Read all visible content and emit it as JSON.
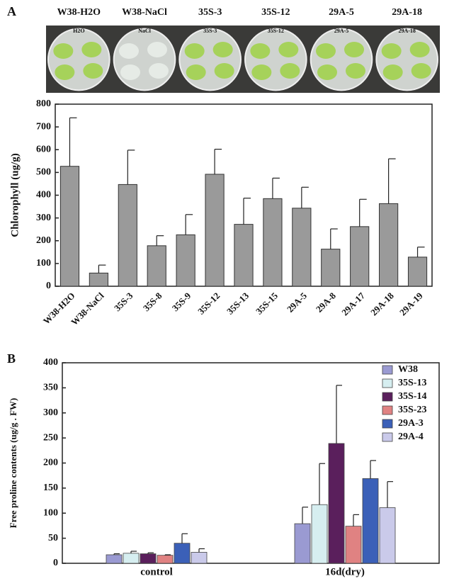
{
  "panel_a_label": "A",
  "photo_labels": [
    "W38-H2O",
    "W38-NaCl",
    "35S-3",
    "35S-12",
    "29A-5",
    "29A-18"
  ],
  "dish_labels": [
    "H2O",
    "NaCl",
    "35S-3",
    "35S-12",
    "29A-5",
    "29A-18"
  ],
  "panel_b_label": "B",
  "chart_data": [
    {
      "type": "bar",
      "ylabel": "Chlorophyll (ug/g)",
      "categories": [
        "W38-H2O",
        "W38-NaCl",
        "35S-3",
        "35S-8",
        "35S-9",
        "35S-12",
        "35S-13",
        "35S-15",
        "29A-5",
        "29A-8",
        "29A-17",
        "29A-18",
        "29A-19"
      ],
      "values": [
        527,
        58,
        447,
        178,
        226,
        492,
        272,
        385,
        343,
        163,
        262,
        363,
        128
      ],
      "errors": [
        213,
        35,
        151,
        44,
        89,
        110,
        115,
        90,
        92,
        89,
        120,
        197,
        44
      ],
      "color": "#9a9a9a",
      "ylim": [
        0,
        800
      ],
      "yticks": [
        0,
        100,
        200,
        300,
        400,
        500,
        600,
        700,
        800
      ]
    },
    {
      "type": "bar",
      "ylabel": "Free proline contents (ug/g . FW)",
      "categories": [
        "control",
        "16d(dry)"
      ],
      "series": [
        {
          "name": "W38",
          "color": "#9a9ad2",
          "values": [
            17,
            79
          ],
          "errors": [
            2,
            33
          ]
        },
        {
          "name": "35S-13",
          "color": "#d6eef0",
          "values": [
            20,
            117
          ],
          "errors": [
            4,
            82
          ]
        },
        {
          "name": "35S-14",
          "color": "#5a1f5c",
          "values": [
            19,
            239
          ],
          "errors": [
            2,
            116
          ]
        },
        {
          "name": "35S-23",
          "color": "#e08282",
          "values": [
            16,
            74
          ],
          "errors": [
            1,
            23
          ]
        },
        {
          "name": "29A-3",
          "color": "#3b60b8",
          "values": [
            40,
            169
          ],
          "errors": [
            19,
            36
          ]
        },
        {
          "name": "29A-4",
          "color": "#cacaea",
          "values": [
            22,
            111
          ],
          "errors": [
            7,
            52
          ]
        }
      ],
      "ylim": [
        0,
        400
      ],
      "yticks": [
        0,
        50,
        100,
        150,
        200,
        250,
        300,
        350,
        400
      ],
      "legend": "upper right"
    }
  ]
}
